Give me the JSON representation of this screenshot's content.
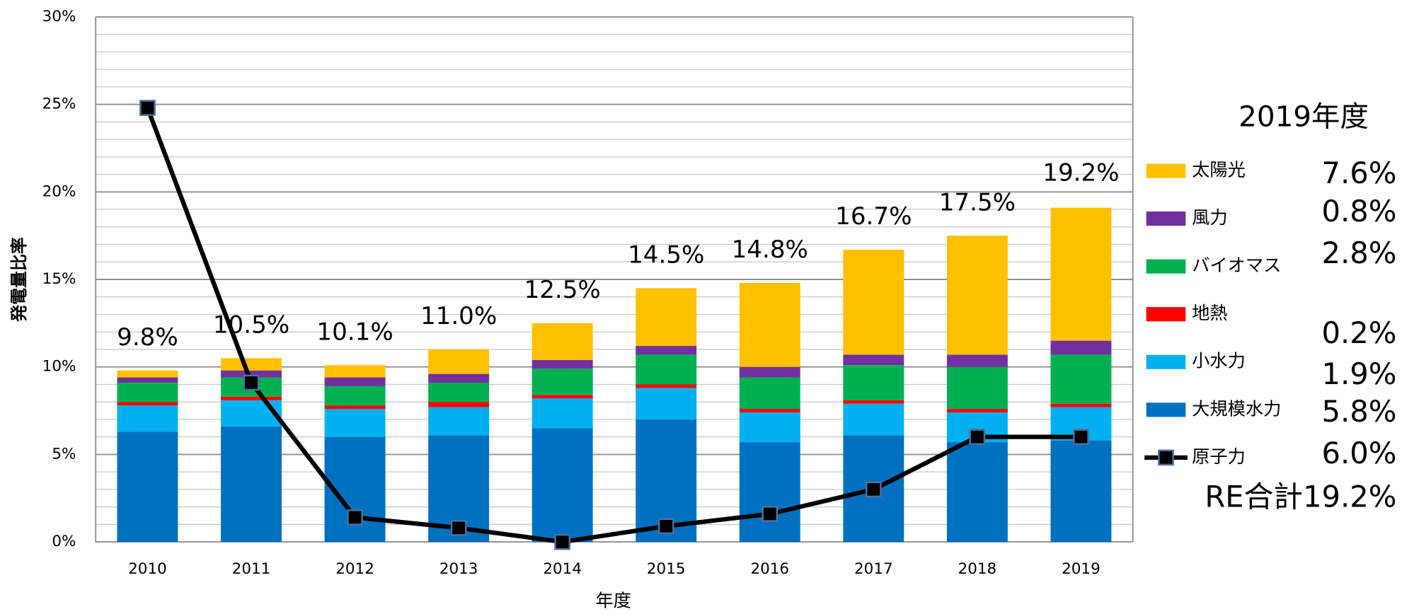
{
  "chart_data": {
    "type": "bar",
    "stacked": true,
    "x_label": "年度",
    "y_label": "発電量比率",
    "categories": [
      "2010",
      "2011",
      "2012",
      "2013",
      "2014",
      "2015",
      "2016",
      "2017",
      "2018",
      "2019"
    ],
    "ylim": [
      0,
      30
    ],
    "yticks": [
      {
        "value": 0,
        "label": "0%"
      },
      {
        "value": 5,
        "label": "5%"
      },
      {
        "value": 10,
        "label": "10%"
      },
      {
        "value": 15,
        "label": "15%"
      },
      {
        "value": 20,
        "label": "20%"
      },
      {
        "value": 25,
        "label": "25%"
      },
      {
        "value": 30,
        "label": "30%"
      }
    ],
    "minor_yticks": [
      1,
      2,
      3,
      4,
      6,
      7,
      8,
      9,
      11,
      12,
      13,
      14,
      16,
      17,
      18,
      19,
      21,
      22,
      23,
      24,
      26,
      27,
      28,
      29
    ],
    "grid": true,
    "series": [
      {
        "name": "大規模水力",
        "color": "#0070c0",
        "type": "bar",
        "values": [
          6.3,
          6.6,
          6.0,
          6.1,
          6.5,
          7.0,
          5.7,
          6.1,
          5.7,
          5.8
        ]
      },
      {
        "name": "小水力",
        "color": "#00b0f0",
        "type": "bar",
        "values": [
          1.5,
          1.5,
          1.6,
          1.6,
          1.7,
          1.8,
          1.7,
          1.8,
          1.7,
          1.9
        ]
      },
      {
        "name": "地熱",
        "color": "#ff0000",
        "type": "bar",
        "values": [
          0.2,
          0.2,
          0.2,
          0.3,
          0.2,
          0.2,
          0.2,
          0.2,
          0.2,
          0.2
        ]
      },
      {
        "name": "バイオマス",
        "color": "#00b050",
        "type": "bar",
        "values": [
          1.1,
          1.1,
          1.1,
          1.1,
          1.5,
          1.7,
          1.8,
          2.0,
          2.4,
          2.8
        ]
      },
      {
        "name": "風力",
        "color": "#7030a0",
        "type": "bar",
        "values": [
          0.3,
          0.4,
          0.5,
          0.5,
          0.5,
          0.5,
          0.6,
          0.6,
          0.7,
          0.8
        ]
      },
      {
        "name": "太陽光",
        "color": "#ffc000",
        "type": "bar",
        "values": [
          0.4,
          0.7,
          0.7,
          1.4,
          2.1,
          3.3,
          4.8,
          6.0,
          6.8,
          7.6
        ]
      },
      {
        "name": "原子力",
        "color": "#000000",
        "type": "line",
        "values": [
          24.8,
          9.1,
          1.4,
          0.8,
          0.0,
          0.9,
          1.6,
          3.0,
          6.0,
          6.0
        ]
      }
    ],
    "totals": {
      "values": [
        9.8,
        10.5,
        10.1,
        11.0,
        12.5,
        14.5,
        14.8,
        16.7,
        17.5,
        19.2
      ],
      "value_labels": [
        "9.8%",
        "10.5%",
        "10.1%",
        "11.0%",
        "12.5%",
        "14.5%",
        "14.8%",
        "16.7%",
        "17.5%",
        "19.2%"
      ]
    },
    "side_panel": {
      "title": "2019年度",
      "values": [
        7.6,
        0.8,
        2.8,
        0.2,
        1.9,
        5.8,
        6.0
      ],
      "value_labels": [
        "7.6%",
        "0.8%",
        "2.8%",
        "0.2%",
        "1.9%",
        "5.8%",
        "6.0%"
      ],
      "total_label": "RE合計19.2%"
    }
  }
}
